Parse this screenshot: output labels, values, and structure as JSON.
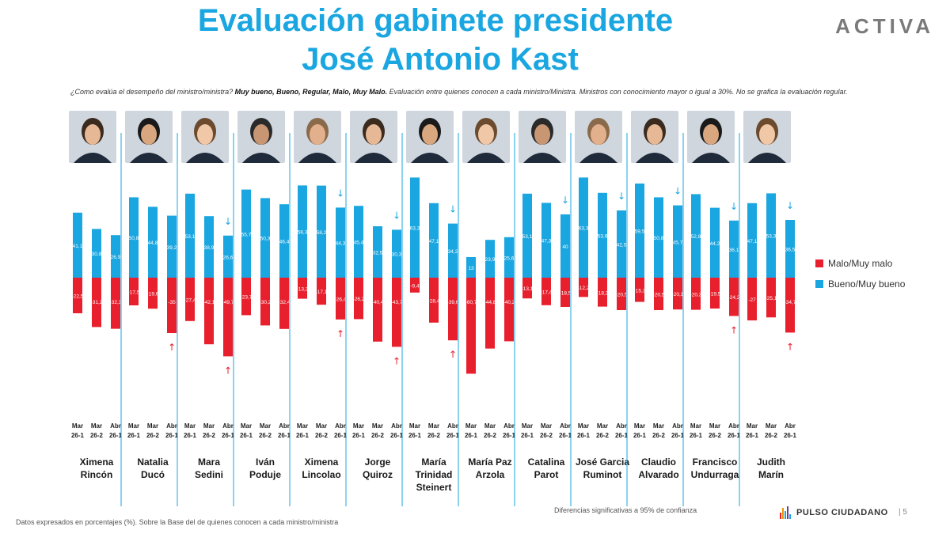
{
  "header": {
    "title_line1": "Evaluación gabinete presidente",
    "title_line2": "José Antonio Kast",
    "brand": "ACTIVA"
  },
  "subtitle": {
    "question": "¿Como evalúa el desempeño del ministro/ministra?",
    "options": "Muy bueno, Bueno, Regular, Malo, Muy Malo.",
    "note": "Evaluación entre quienes conocen a cada ministro/Ministra. Ministros con conocimiento mayor o igual a 30%. No se grafica la evaluación regular."
  },
  "footer": {
    "left": "Datos expresados en porcentajes (%). Sobre la Base del de quienes conocen a cada ministro/ministra",
    "significance": "Diferencias significativas a 95% de confianza",
    "logo": "PULSO CIUDADANO",
    "page": "5"
  },
  "colors": {
    "bueno": "#1aa6e0",
    "malo": "#e8202e",
    "separator": "#1aa6e0",
    "arrow_down": "#1aa6e0",
    "arrow_up": "#e8202e"
  },
  "photo_icons": [
    "portrait-photo"
  ],
  "chart_data": {
    "type": "bar",
    "periods": [
      "Mar 26-1",
      "Mar 26-2",
      "Abr 26-1"
    ],
    "period_lines": [
      [
        "Mar",
        "26-1"
      ],
      [
        "Mar",
        "26-2"
      ],
      [
        "Abr",
        "26-1"
      ]
    ],
    "series_names": [
      "Malo/Muy malo",
      "Bueno/Muy bueno"
    ],
    "ministers": [
      {
        "name": [
          "Ximena",
          "Rincón"
        ],
        "bueno": [
          41.1,
          30.8,
          26.9
        ],
        "bueno_labels": [
          "41,1",
          "30,8",
          "26,9"
        ],
        "malo": [
          22.5,
          31.2,
          32.3
        ],
        "malo_labels": [
          "22,5",
          "31,2",
          "32,3"
        ],
        "down_arrow": false,
        "up_arrow": false
      },
      {
        "name": [
          "Natalia",
          "Ducó"
        ],
        "bueno": [
          50.8,
          44.8,
          39.2
        ],
        "bueno_labels": [
          "50,8",
          "44,8",
          "39,2"
        ],
        "malo": [
          17.5,
          19.6,
          35
        ],
        "malo_labels": [
          "17,5",
          "19,6",
          "35"
        ],
        "down_arrow": false,
        "up_arrow": true
      },
      {
        "name": [
          "Mara",
          "Sedini"
        ],
        "bueno": [
          53.1,
          38.9,
          26.6
        ],
        "bueno_labels": [
          "53,1",
          "38,9",
          "26,6"
        ],
        "malo": [
          27.4,
          42.1,
          49.7
        ],
        "malo_labels": [
          "27,4",
          "42,1",
          "49,7"
        ],
        "down_arrow": true,
        "up_arrow": true
      },
      {
        "name": [
          "Iván",
          "Poduje"
        ],
        "bueno": [
          55.7,
          50.3,
          46.4
        ],
        "bueno_labels": [
          "55,7",
          "50,3",
          "46,4"
        ],
        "malo": [
          23.7,
          30.2,
          32.4
        ],
        "malo_labels": [
          "23,7",
          "30,2",
          "32,4"
        ],
        "down_arrow": false,
        "up_arrow": false
      },
      {
        "name": [
          "Ximena",
          "Lincolao"
        ],
        "bueno": [
          58.3,
          58.2,
          44.3
        ],
        "bueno_labels": [
          "58,3",
          "58,2",
          "44,3"
        ],
        "malo": [
          13.3,
          17.1,
          26.4
        ],
        "malo_labels": [
          "13,3",
          "17,1",
          "26,4"
        ],
        "down_arrow": true,
        "up_arrow": true
      },
      {
        "name": [
          "Jorge",
          "Quiroz"
        ],
        "bueno": [
          45.4,
          32.5,
          30.3
        ],
        "bueno_labels": [
          "45,4",
          "32,5",
          "30,3"
        ],
        "malo": [
          26.2,
          40.4,
          43.7
        ],
        "malo_labels": [
          "26,2",
          "40,4",
          "43,7"
        ],
        "down_arrow": true,
        "up_arrow": true
      },
      {
        "name": [
          "María",
          "Trinidad",
          "Steinert"
        ],
        "bueno": [
          63.3,
          47.1,
          34.2
        ],
        "bueno_labels": [
          "63,3",
          "47,1",
          "34,2"
        ],
        "malo": [
          9.4,
          28.4,
          39.6
        ],
        "malo_labels": [
          "9,4",
          "28,4",
          "39,6"
        ],
        "down_arrow": true,
        "up_arrow": true
      },
      {
        "name": [
          "María Paz",
          "Arzola"
        ],
        "bueno": [
          13,
          23.9,
          25.6
        ],
        "bueno_labels": [
          "13",
          "23,9",
          "25,6"
        ],
        "malo": [
          60.7,
          44.8,
          40.2
        ],
        "malo_labels": [
          "60,7",
          "44,8",
          "40,2"
        ],
        "down_arrow": false,
        "up_arrow": false
      },
      {
        "name": [
          "Catalina",
          "Parot"
        ],
        "bueno": [
          53.1,
          47.3,
          40
        ],
        "bueno_labels": [
          "53,1",
          "47,3",
          "40"
        ],
        "malo": [
          13.1,
          17.4,
          18.5
        ],
        "malo_labels": [
          "13,1",
          "17,4",
          "18,5"
        ],
        "down_arrow": true,
        "up_arrow": false
      },
      {
        "name": [
          "José Garcia",
          "Ruminot"
        ],
        "bueno": [
          63.3,
          53.6,
          42.5
        ],
        "bueno_labels": [
          "63,3",
          "53,6",
          "42,5"
        ],
        "malo": [
          12.2,
          18.3,
          20.5
        ],
        "malo_labels": [
          "12,2",
          "18,3",
          "20,5"
        ],
        "down_arrow": true,
        "up_arrow": false
      },
      {
        "name": [
          "Claudio",
          "Alvarado"
        ],
        "bueno": [
          59.5,
          50.8,
          45.7
        ],
        "bueno_labels": [
          "59,5",
          "50,8",
          "45,7"
        ],
        "malo": [
          15.3,
          20.5,
          20.1
        ],
        "malo_labels": [
          "15,3",
          "20,5",
          "20,1"
        ],
        "down_arrow": true,
        "up_arrow": false
      },
      {
        "name": [
          "Francisco",
          "Undurraga"
        ],
        "bueno": [
          52.8,
          44.2,
          36.1
        ],
        "bueno_labels": [
          "52,8",
          "44,2",
          "36,1"
        ],
        "malo": [
          20.3,
          19.5,
          24.2
        ],
        "malo_labels": [
          "20,3",
          "19,5",
          "24,2"
        ],
        "down_arrow": true,
        "up_arrow": true
      },
      {
        "name": [
          "Judith",
          "Marín"
        ],
        "bueno": [
          47.1,
          53.3,
          36.5
        ],
        "bueno_labels": [
          "47,1",
          "53,3",
          "36,5"
        ],
        "malo": [
          27,
          25.1,
          34.7
        ],
        "malo_labels": [
          "27",
          "25,1",
          "34,7"
        ],
        "down_arrow": true,
        "up_arrow": true
      }
    ]
  }
}
